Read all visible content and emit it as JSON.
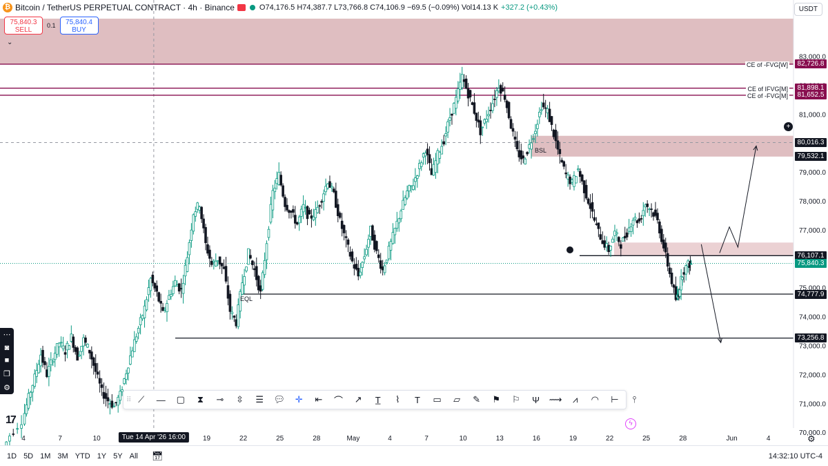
{
  "header": {
    "symbol_title": "Bitcoin / TetherUS PERPETUAL CONTRACT · 4h · Binance",
    "ohlc": "O74,176.5 H74,387.7 L73,766.8 C74,106.9 −69.5 (−0.09%) Vol14.13 K",
    "change": "+327.2 (+0.43%)",
    "coin_glyph": "₿"
  },
  "trade": {
    "sell_price": "75,840.3",
    "sell_label": "SELL",
    "quantity": "0.1",
    "buy_price": "75,840.4",
    "buy_label": "BUY"
  },
  "currency": "USDT",
  "chart_data": {
    "type": "candlestick",
    "timeframe": "4h",
    "ylim": [
      69700,
      84300
    ],
    "y_ticks": [
      "83,000.0",
      "82,000.0",
      "81,000.0",
      "80,000.0",
      "79,000.0",
      "78,000.0",
      "77,000.0",
      "76,000.0",
      "75,000.0",
      "74,000.0",
      "73,000.0",
      "72,000.0",
      "71,000.0",
      "70,000.0"
    ],
    "x_ticks": [
      {
        "label": "4",
        "day": 4
      },
      {
        "label": "7",
        "day": 7
      },
      {
        "label": "10",
        "day": 10
      },
      {
        "label": "19",
        "day": 19
      },
      {
        "label": "22",
        "day": 22
      },
      {
        "label": "25",
        "day": 25
      },
      {
        "label": "28",
        "day": 28
      },
      {
        "label": "May",
        "day": 31
      },
      {
        "label": "4",
        "day": 34
      },
      {
        "label": "7",
        "day": 37
      },
      {
        "label": "10",
        "day": 40
      },
      {
        "label": "13",
        "day": 43
      },
      {
        "label": "16",
        "day": 46
      },
      {
        "label": "19",
        "day": 49
      },
      {
        "label": "22",
        "day": 52
      },
      {
        "label": "25",
        "day": 55
      },
      {
        "label": "28",
        "day": 58
      },
      {
        "label": "Jun",
        "day": 62
      },
      {
        "label": "4",
        "day": 65
      }
    ],
    "x_cursor": {
      "label": "Tue 14 Apr '26   16:00",
      "day": 14.67
    },
    "price_path": [
      [
        2.2,
        69200
      ],
      [
        3.0,
        69900
      ],
      [
        4.0,
        70400
      ],
      [
        4.5,
        71200
      ],
      [
        5.0,
        71900
      ],
      [
        5.5,
        72700
      ],
      [
        6.0,
        72000
      ],
      [
        6.5,
        72600
      ],
      [
        7.0,
        73100
      ],
      [
        7.5,
        72800
      ],
      [
        8.0,
        73300
      ],
      [
        8.5,
        72600
      ],
      [
        9.0,
        73200
      ],
      [
        9.5,
        72800
      ],
      [
        10.0,
        72100
      ],
      [
        10.5,
        71400
      ],
      [
        11.0,
        71100
      ],
      [
        11.5,
        70900
      ],
      [
        12.0,
        71300
      ],
      [
        12.5,
        72100
      ],
      [
        13.0,
        72900
      ],
      [
        13.5,
        73600
      ],
      [
        14.0,
        74300
      ],
      [
        14.5,
        75300
      ],
      [
        15.0,
        74800
      ],
      [
        15.5,
        74100
      ],
      [
        16.0,
        74700
      ],
      [
        16.5,
        75200
      ],
      [
        17.0,
        74900
      ],
      [
        17.5,
        76100
      ],
      [
        18.0,
        77600
      ],
      [
        18.5,
        77900
      ],
      [
        19.0,
        76500
      ],
      [
        19.5,
        75800
      ],
      [
        20.0,
        76000
      ],
      [
        20.5,
        75600
      ],
      [
        21.0,
        74200
      ],
      [
        21.5,
        73800
      ],
      [
        22.0,
        75200
      ],
      [
        22.5,
        76200
      ],
      [
        23.0,
        75600
      ],
      [
        23.5,
        74800
      ],
      [
        24.0,
        76600
      ],
      [
        24.5,
        78300
      ],
      [
        25.0,
        78900
      ],
      [
        25.5,
        77900
      ],
      [
        26.0,
        77600
      ],
      [
        26.5,
        77200
      ],
      [
        27.0,
        77800
      ],
      [
        27.5,
        77400
      ],
      [
        28.0,
        77600
      ],
      [
        28.5,
        78100
      ],
      [
        29.0,
        78700
      ],
      [
        29.5,
        78200
      ],
      [
        30.0,
        77300
      ],
      [
        30.5,
        76600
      ],
      [
        31.0,
        75900
      ],
      [
        31.5,
        75400
      ],
      [
        32.0,
        76100
      ],
      [
        32.5,
        77000
      ],
      [
        33.0,
        76200
      ],
      [
        33.5,
        75600
      ],
      [
        34.0,
        76300
      ],
      [
        34.5,
        77000
      ],
      [
        35.0,
        77700
      ],
      [
        35.5,
        78300
      ],
      [
        36.0,
        78600
      ],
      [
        36.5,
        79200
      ],
      [
        37.0,
        79800
      ],
      [
        37.5,
        78900
      ],
      [
        38.0,
        79600
      ],
      [
        38.5,
        80100
      ],
      [
        39.0,
        80900
      ],
      [
        39.5,
        81500
      ],
      [
        40.0,
        82300
      ],
      [
        40.5,
        81700
      ],
      [
        41.0,
        81100
      ],
      [
        41.5,
        80400
      ],
      [
        42.0,
        80900
      ],
      [
        42.5,
        81400
      ],
      [
        43.0,
        82000
      ],
      [
        43.5,
        81600
      ],
      [
        44.0,
        80600
      ],
      [
        44.5,
        79700
      ],
      [
        45.0,
        79400
      ],
      [
        45.5,
        79900
      ],
      [
        46.0,
        80500
      ],
      [
        46.5,
        81300
      ],
      [
        47.0,
        81100
      ],
      [
        47.5,
        80300
      ],
      [
        48.0,
        79500
      ],
      [
        48.5,
        78900
      ],
      [
        49.0,
        78600
      ],
      [
        49.5,
        79100
      ],
      [
        50.0,
        78400
      ],
      [
        50.5,
        77800
      ],
      [
        51.0,
        77100
      ],
      [
        51.5,
        76600
      ],
      [
        52.0,
        76300
      ],
      [
        52.5,
        76900
      ],
      [
        53.0,
        76500
      ],
      [
        53.5,
        76900
      ],
      [
        54.0,
        77400
      ],
      [
        54.5,
        77300
      ],
      [
        55.0,
        77900
      ],
      [
        55.5,
        77700
      ],
      [
        56.0,
        77300
      ],
      [
        56.5,
        76400
      ],
      [
        57.0,
        75500
      ],
      [
        57.5,
        74600
      ],
      [
        57.7,
        74800
      ],
      [
        58.0,
        75500
      ],
      [
        58.5,
        75800
      ],
      [
        58.7,
        75840.3
      ]
    ],
    "horizontal_levels": [
      {
        "price": 82726.8,
        "label": "CE of -FVG[W]",
        "tag": "82,726.8",
        "color": "#880e4f"
      },
      {
        "price": 81898.1,
        "label": "CE of IFVG[M]",
        "tag": "81,898.1",
        "color": "#880e4f"
      },
      {
        "price": 81652.5,
        "label": "CE of -FVG[M]",
        "tag": "81,652.5",
        "color": "#880e4f"
      },
      {
        "price": 76107.1,
        "label": "",
        "tag": "76,107.1",
        "color": "#131722"
      },
      {
        "price": 74777.9,
        "label": "EQL",
        "tag": "74,777.9",
        "color": "#131722"
      },
      {
        "price": 73256.8,
        "label": "",
        "tag": "73,256.8",
        "color": "#131722"
      }
    ],
    "zones": [
      {
        "from": 82726.8,
        "to": 84300,
        "color": "#d9b3b6"
      },
      {
        "from": 79532.1,
        "to": 80250,
        "color": "#d9b3b6",
        "label": "BSL"
      },
      {
        "from": 76107.1,
        "to": 76560,
        "color": "#e8c9cb"
      }
    ],
    "extra_tags": [
      {
        "price": 80016.3,
        "tag": "80,016.3",
        "color": "#131722"
      },
      {
        "price": 79532.1,
        "tag": "79,532.1",
        "color": "#131722"
      },
      {
        "price": 75840.3,
        "tag": "75,840.3",
        "color": "#089981"
      }
    ],
    "projection_up": [
      [
        61.0,
        76200
      ],
      [
        61.8,
        77100
      ],
      [
        62.5,
        76400
      ],
      [
        64.0,
        79900
      ]
    ],
    "projection_down": [
      [
        59.5,
        76500
      ],
      [
        61.1,
        73100
      ]
    ],
    "current_price": 75840.3,
    "crosshair_price": 80016.3
  },
  "toolbar": {
    "tools": [
      "trend-line",
      "horizontal-line",
      "rectangle",
      "long-position-tool",
      "horizontal-ray",
      "price-range",
      "fib-retracement",
      "callout",
      "crosshair",
      "date-range",
      "path",
      "arrow",
      "anchored-text",
      "brush",
      "text",
      "note",
      "comment",
      "pencil",
      "flag",
      "signpost",
      "pitchfork",
      "extended-line",
      "polyline",
      "curve",
      "info-line",
      "pin"
    ]
  },
  "bottom": {
    "ranges": [
      "1D",
      "5D",
      "1M",
      "3M",
      "YTD",
      "1Y",
      "5Y",
      "All"
    ],
    "clock": "14:32:10 UTC-4"
  }
}
